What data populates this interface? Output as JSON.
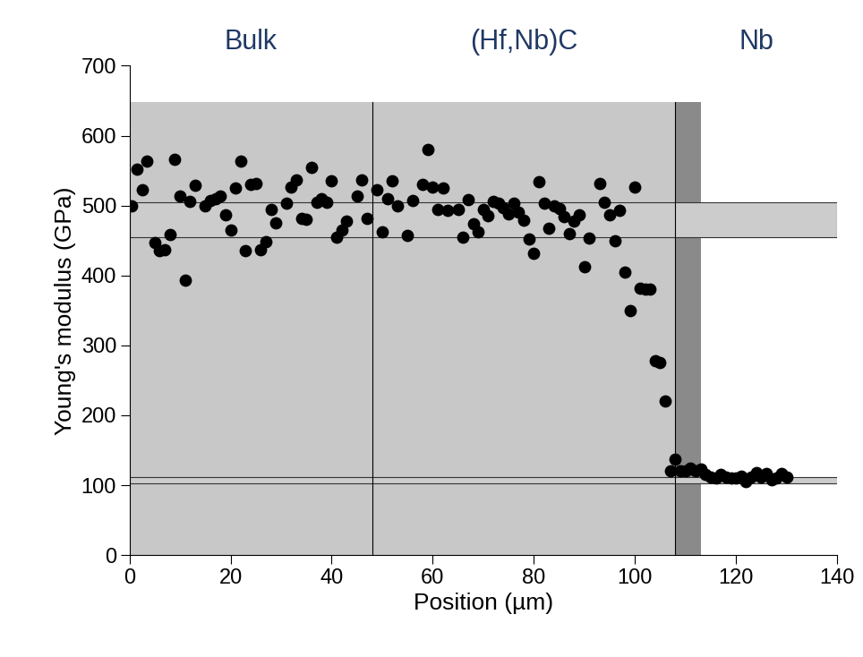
{
  "chart_data": {
    "type": "scatter",
    "xlabel": "Position (µm)",
    "ylabel": "Young's modulus (GPa)",
    "xlim": [
      0,
      140
    ],
    "ylim": [
      0,
      700
    ],
    "xticks": [
      0,
      20,
      40,
      60,
      80,
      100,
      120,
      140
    ],
    "yticks": [
      0,
      100,
      200,
      300,
      400,
      500,
      600,
      700
    ],
    "color": "#000000",
    "marker": "circle",
    "regions": [
      "Bulk",
      "(Hf,Nb)C",
      "Nb"
    ],
    "boundaries": [
      48,
      108
    ],
    "bands": [
      [
        455,
        505
      ],
      [
        103,
        112
      ]
    ],
    "x": [
      0.5,
      1.5,
      2.5,
      3.5,
      5,
      6,
      7,
      8,
      9,
      10,
      11,
      12,
      13,
      15,
      16,
      17,
      18,
      19,
      20,
      21,
      22,
      23,
      24,
      25,
      26,
      27,
      28,
      29,
      31,
      32,
      33,
      34,
      35,
      36,
      37,
      38,
      39,
      40,
      41,
      42,
      43,
      45,
      46,
      47,
      49,
      50,
      51,
      52,
      53,
      55,
      56,
      58,
      59,
      60,
      61,
      62,
      63,
      65,
      66,
      67,
      68,
      69,
      70,
      71,
      72,
      73,
      74,
      75,
      76,
      77,
      78,
      79,
      80,
      81,
      82,
      83,
      84,
      85,
      86,
      87,
      88,
      89,
      90,
      91,
      93,
      94,
      95,
      96,
      97,
      98,
      99,
      100,
      101,
      102,
      103,
      104,
      105,
      106,
      107,
      108,
      109,
      110,
      111,
      112,
      113,
      114,
      115,
      116,
      117,
      118,
      119,
      120,
      121,
      122,
      123,
      124,
      125,
      126,
      127,
      128,
      129,
      130
    ],
    "values": [
      500,
      552,
      522,
      563,
      447,
      436,
      437,
      458,
      566,
      513,
      393,
      506,
      529,
      500,
      507,
      510,
      513,
      487,
      465,
      525,
      563,
      436,
      530,
      532,
      437,
      448,
      494,
      475,
      503,
      527,
      537,
      482,
      480,
      555,
      505,
      510,
      505,
      535,
      455,
      465,
      478,
      513,
      537,
      482,
      522,
      462,
      510,
      535,
      500,
      457,
      507,
      530,
      580,
      527,
      494,
      525,
      493,
      494,
      455,
      508,
      474,
      463,
      495,
      485,
      506,
      503,
      497,
      488,
      503,
      490,
      479,
      452,
      432,
      534,
      503,
      468,
      499,
      496,
      484,
      460,
      478,
      487,
      412,
      453,
      532,
      505,
      487,
      450,
      493,
      405,
      350,
      527,
      382,
      381,
      380,
      278,
      276,
      220,
      121,
      137,
      120,
      120,
      125,
      120,
      123,
      115,
      112,
      110,
      115,
      112,
      111,
      110,
      113,
      105,
      112,
      118,
      112,
      117,
      108,
      110,
      117,
      112
    ]
  }
}
